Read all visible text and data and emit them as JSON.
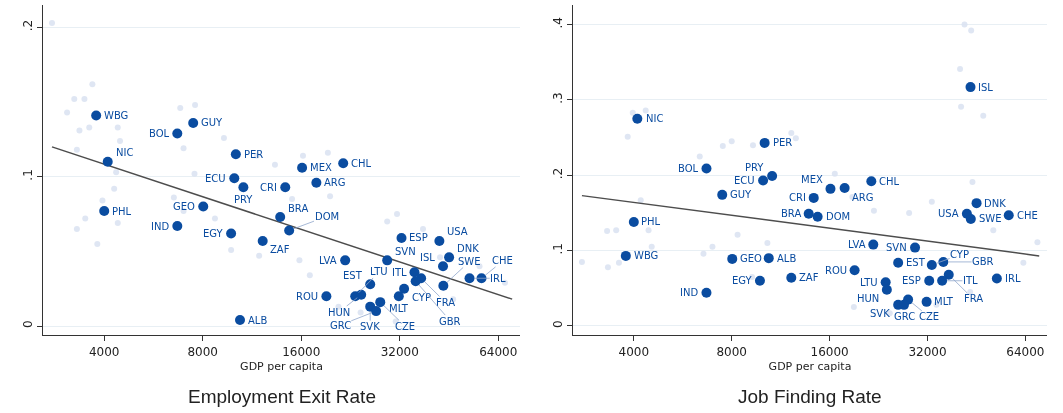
{
  "chart_data": [
    {
      "type": "scatter",
      "title": "Employment Exit Rate",
      "xlabel": "GDP per capita",
      "log": "x",
      "xlim": [
        2600,
        74600
      ],
      "xticks": [
        4000,
        8000,
        16000,
        32000,
        64000
      ],
      "ylim": [
        -0.006,
        0.215
      ],
      "yticks": [
        {
          "value": 0,
          "label": "0"
        },
        {
          "value": 0.1,
          "label": ".1"
        },
        {
          "value": 0.2,
          "label": ".2"
        }
      ],
      "grid": "y",
      "marker": "circle",
      "legend": false,
      "series": [
        {
          "color": "#d9e2f1",
          "x": [
            2770,
            3680,
            3240,
            3480,
            3080,
            3600,
            3360,
            4400,
            4470,
            3300,
            4350,
            4290,
            3950,
            3500,
            3300,
            3810,
            4400,
            6830,
            7580,
            9290,
            6990,
            7550,
            6530,
            6990,
            8720,
            9770,
            11900,
            11700,
            16200,
            19300,
            13300,
            15000,
            19600,
            29300,
            31400,
            37700,
            67100,
            46600,
            24300,
            31100,
            20800,
            17000,
            15800,
            56100,
            42500
          ],
          "values": [
            0.203,
            0.162,
            0.152,
            0.152,
            0.143,
            0.133,
            0.131,
            0.133,
            0.124,
            0.118,
            0.103,
            0.092,
            0.084,
            0.072,
            0.065,
            0.055,
            0.069,
            0.146,
            0.148,
            0.126,
            0.119,
            0.102,
            0.086,
            0.077,
            0.072,
            0.051,
            0.047,
            0.114,
            0.114,
            0.116,
            0.108,
            0.085,
            0.087,
            0.07,
            0.075,
            0.065,
            0.029,
            0.018,
            0.009,
            0.003,
            0.013,
            0.034,
            0.044,
            0.04,
            0.046
          ]
        },
        {
          "type": "line",
          "marker": "none",
          "color": "#4d4d4d",
          "x": [
            2770,
            70600
          ],
          "values": [
            0.12,
            0.018
          ]
        },
        {
          "name": "WBG",
          "color": "#0a4ca0",
          "x": [
            3780
          ],
          "values": [
            0.141
          ]
        },
        {
          "name": "NIC",
          "color": "#0a4ca0",
          "x": [
            4100
          ],
          "values": [
            0.11
          ]
        },
        {
          "name": "PHL",
          "color": "#0a4ca0",
          "x": [
            4000
          ],
          "values": [
            0.077
          ]
        },
        {
          "name": "BOL",
          "color": "#0a4ca0",
          "x": [
            6690
          ],
          "values": [
            0.129
          ]
        },
        {
          "name": "GUY",
          "color": "#0a4ca0",
          "x": [
            7480
          ],
          "values": [
            0.136
          ]
        },
        {
          "name": "IND",
          "color": "#0a4ca0",
          "x": [
            6690
          ],
          "values": [
            0.067
          ]
        },
        {
          "name": "GEO",
          "color": "#0a4ca0",
          "x": [
            8030
          ],
          "values": [
            0.08
          ]
        },
        {
          "name": "PER",
          "color": "#0a4ca0",
          "x": [
            10100
          ],
          "values": [
            0.115
          ]
        },
        {
          "name": "ECU",
          "color": "#0a4ca0",
          "x": [
            9990
          ],
          "values": [
            0.099
          ]
        },
        {
          "name": "PRY",
          "color": "#0a4ca0",
          "x": [
            10650
          ],
          "values": [
            0.093
          ]
        },
        {
          "name": "EGY",
          "color": "#0a4ca0",
          "x": [
            9770
          ],
          "values": [
            0.062
          ]
        },
        {
          "name": "ZAF",
          "color": "#0a4ca0",
          "x": [
            12200
          ],
          "values": [
            0.057
          ]
        },
        {
          "name": "ALB",
          "color": "#0a4ca0",
          "x": [
            10400
          ],
          "values": [
            0.004
          ]
        },
        {
          "name": "MEX",
          "color": "#0a4ca0",
          "x": [
            16100
          ],
          "values": [
            0.106
          ]
        },
        {
          "name": "CHL",
          "color": "#0a4ca0",
          "x": [
            21500
          ],
          "values": [
            0.109
          ]
        },
        {
          "name": "CRI",
          "color": "#0a4ca0",
          "x": [
            14300
          ],
          "values": [
            0.093
          ]
        },
        {
          "name": "ARG",
          "color": "#0a4ca0",
          "x": [
            17800
          ],
          "values": [
            0.096
          ]
        },
        {
          "name": "BRA",
          "color": "#0a4ca0",
          "x": [
            13800
          ],
          "values": [
            0.073
          ]
        },
        {
          "name": "DOM",
          "color": "#0a4ca0",
          "x": [
            14700
          ],
          "values": [
            0.064
          ]
        },
        {
          "name": "ESP",
          "color": "#0a4ca0",
          "x": [
            32400
          ],
          "values": [
            0.059
          ]
        },
        {
          "name": "USA",
          "color": "#0a4ca0",
          "x": [
            42300
          ],
          "values": [
            0.057
          ]
        },
        {
          "name": "LVA",
          "color": "#0a4ca0",
          "x": [
            21800
          ],
          "values": [
            0.044
          ]
        },
        {
          "name": "SVN",
          "color": "#0a4ca0",
          "x": [
            29300
          ],
          "values": [
            0.044
          ]
        },
        {
          "name": "DNK",
          "color": "#0a4ca0",
          "x": [
            45300
          ],
          "values": [
            0.046
          ]
        },
        {
          "name": "ISL",
          "color": "#0a4ca0",
          "x": [
            43400
          ],
          "values": [
            0.04
          ]
        },
        {
          "name": "ITL",
          "color": "#0a4ca0",
          "x": [
            35500
          ],
          "values": [
            0.036
          ]
        },
        {
          "name": "FRA",
          "color": "#0a4ca0",
          "x": [
            37200
          ],
          "values": [
            0.032
          ]
        },
        {
          "name": "GBR",
          "color": "#0a4ca0",
          "x": [
            35800
          ],
          "values": [
            0.03
          ]
        },
        {
          "name": "IRL",
          "color": "#0a4ca0",
          "x": [
            52300
          ],
          "values": [
            0.032
          ]
        },
        {
          "name": "CHE",
          "color": "#0a4ca0",
          "x": [
            56900
          ],
          "values": [
            0.032
          ]
        },
        {
          "name": "SWE",
          "color": "#0a4ca0",
          "x": [
            43500
          ],
          "values": [
            0.027
          ]
        },
        {
          "name": "CYP",
          "color": "#0a4ca0",
          "x": [
            33000
          ],
          "values": [
            0.025
          ]
        },
        {
          "name": "EST",
          "color": "#0a4ca0",
          "x": [
            26000
          ],
          "values": [
            0.028
          ]
        },
        {
          "name": "MLT",
          "color": "#0a4ca0",
          "x": [
            31800
          ],
          "values": [
            0.02
          ]
        },
        {
          "name": "ROU",
          "color": "#0a4ca0",
          "x": [
            19100
          ],
          "values": [
            0.02
          ]
        },
        {
          "name": "LTU",
          "color": "#0a4ca0",
          "x": [
            23400
          ],
          "values": [
            0.02
          ]
        },
        {
          "name": "HUN",
          "color": "#0a4ca0",
          "x": [
            24400
          ],
          "values": [
            0.021
          ]
        },
        {
          "name": "CZE",
          "color": "#0a4ca0",
          "x": [
            27900
          ],
          "values": [
            0.016
          ]
        },
        {
          "name": "SVK",
          "color": "#0a4ca0",
          "x": [
            26000
          ],
          "values": [
            0.013
          ]
        },
        {
          "name": "GRC",
          "color": "#0a4ca0",
          "x": [
            27100
          ],
          "values": [
            0.01
          ]
        }
      ]
    },
    {
      "type": "scatter",
      "title": "Job Finding Rate",
      "xlabel": "GDP per capita",
      "log": "x",
      "xlim": [
        2600,
        74600
      ],
      "xticks": [
        4000,
        8000,
        16000,
        32000,
        64000
      ],
      "ylim": [
        -0.012,
        0.426
      ],
      "yticks": [
        {
          "value": 0,
          "label": "0"
        },
        {
          "value": 0.1,
          "label": ".1"
        },
        {
          "value": 0.2,
          "label": ".2"
        },
        {
          "value": 0.3,
          "label": ".3"
        },
        {
          "value": 0.4,
          "label": ".4"
        }
      ],
      "grid": "y",
      "marker": "circle",
      "legend": false,
      "series": [
        {
          "color": "#d9e2f1",
          "x": [
            2770,
            3310,
            3530,
            3830,
            3970,
            4350,
            4200,
            4440,
            4540,
            3330,
            3600,
            6550,
            6980,
            6380,
            7510,
            8000,
            9300,
            8340,
            9240,
            10300,
            12200,
            12600,
            16600,
            44000,
            41600,
            43600,
            40300,
            40600,
            47500,
            28100,
            33000,
            51000,
            69700,
            63100,
            43300,
            19000,
            24500,
            34100,
            21900,
            18800
          ],
          "values": [
            0.085,
            0.126,
            0.127,
            0.251,
            0.283,
            0.286,
            0.167,
            0.127,
            0.105,
            0.078,
            0.084,
            0.096,
            0.105,
            0.225,
            0.239,
            0.245,
            0.24,
            0.121,
            0.065,
            0.11,
            0.256,
            0.249,
            0.202,
            0.191,
            0.4,
            0.392,
            0.341,
            0.291,
            0.279,
            0.15,
            0.165,
            0.127,
            0.111,
            0.084,
            0.045,
            0.025,
            0.017,
            0.028,
            0.153,
            0.171
          ]
        },
        {
          "type": "line",
          "marker": "none",
          "color": "#4d4d4d",
          "x": [
            2770,
            70600
          ],
          "values": [
            0.173,
            0.093
          ]
        },
        {
          "name": "NIC",
          "color": "#0a4ca0",
          "x": [
            4100
          ],
          "values": [
            0.275
          ]
        },
        {
          "name": "PER",
          "color": "#0a4ca0",
          "x": [
            10100
          ],
          "values": [
            0.243
          ]
        },
        {
          "name": "BOL",
          "color": "#0a4ca0",
          "x": [
            6690
          ],
          "values": [
            0.209
          ]
        },
        {
          "name": "PRY",
          "color": "#0a4ca0",
          "x": [
            10650
          ],
          "values": [
            0.199
          ]
        },
        {
          "name": "ECU",
          "color": "#0a4ca0",
          "x": [
            9990
          ],
          "values": [
            0.193
          ]
        },
        {
          "name": "GUY",
          "color": "#0a4ca0",
          "x": [
            7480
          ],
          "values": [
            0.174
          ]
        },
        {
          "name": "PHL",
          "color": "#0a4ca0",
          "x": [
            4000
          ],
          "values": [
            0.138
          ]
        },
        {
          "name": "WBG",
          "color": "#0a4ca0",
          "x": [
            3780
          ],
          "values": [
            0.093
          ]
        },
        {
          "name": "GEO",
          "color": "#0a4ca0",
          "x": [
            8030
          ],
          "values": [
            0.089
          ]
        },
        {
          "name": "ALB",
          "color": "#0a4ca0",
          "x": [
            10400
          ],
          "values": [
            0.09
          ]
        },
        {
          "name": "EGY",
          "color": "#0a4ca0",
          "x": [
            9770
          ],
          "values": [
            0.06
          ]
        },
        {
          "name": "ZAF",
          "color": "#0a4ca0",
          "x": [
            12200
          ],
          "values": [
            0.064
          ]
        },
        {
          "name": "IND",
          "color": "#0a4ca0",
          "x": [
            6690
          ],
          "values": [
            0.044
          ]
        },
        {
          "name": "ISL",
          "color": "#0a4ca0",
          "x": [
            43400
          ],
          "values": [
            0.317
          ]
        },
        {
          "name": "CHL",
          "color": "#0a4ca0",
          "x": [
            21500
          ],
          "values": [
            0.192
          ]
        },
        {
          "name": "MEX",
          "color": "#0a4ca0",
          "x": [
            16100
          ],
          "values": [
            0.182
          ]
        },
        {
          "name": "ARG",
          "color": "#0a4ca0",
          "x": [
            17800
          ],
          "values": [
            0.183
          ]
        },
        {
          "name": "CRI",
          "color": "#0a4ca0",
          "x": [
            14300
          ],
          "values": [
            0.17
          ]
        },
        {
          "name": "BRA",
          "color": "#0a4ca0",
          "x": [
            13800
          ],
          "values": [
            0.149
          ]
        },
        {
          "name": "DOM",
          "color": "#0a4ca0",
          "x": [
            14700
          ],
          "values": [
            0.145
          ]
        },
        {
          "name": "DNK",
          "color": "#0a4ca0",
          "x": [
            45300
          ],
          "values": [
            0.163
          ]
        },
        {
          "name": "USA",
          "color": "#0a4ca0",
          "x": [
            42300
          ],
          "values": [
            0.149
          ]
        },
        {
          "name": "SWE",
          "color": "#0a4ca0",
          "x": [
            43500
          ],
          "values": [
            0.142
          ]
        },
        {
          "name": "CHE",
          "color": "#0a4ca0",
          "x": [
            56900
          ],
          "values": [
            0.147
          ]
        },
        {
          "name": "LVA",
          "color": "#0a4ca0",
          "x": [
            21800
          ],
          "values": [
            0.108
          ]
        },
        {
          "name": "SVN",
          "color": "#0a4ca0",
          "x": [
            29300
          ],
          "values": [
            0.104
          ]
        },
        {
          "name": "EST",
          "color": "#0a4ca0",
          "x": [
            26000
          ],
          "values": [
            0.084
          ]
        },
        {
          "name": "CYP",
          "color": "#0a4ca0",
          "x": [
            33000
          ],
          "values": [
            0.081
          ]
        },
        {
          "name": "GBR",
          "color": "#0a4ca0",
          "x": [
            35800
          ],
          "values": [
            0.085
          ]
        },
        {
          "name": "FRA",
          "color": "#0a4ca0",
          "x": [
            37200
          ],
          "values": [
            0.068
          ]
        },
        {
          "name": "ESP",
          "color": "#0a4ca0",
          "x": [
            32400
          ],
          "values": [
            0.06
          ]
        },
        {
          "name": "ITL",
          "color": "#0a4ca0",
          "x": [
            35500
          ],
          "values": [
            0.06
          ]
        },
        {
          "name": "IRL",
          "color": "#0a4ca0",
          "x": [
            52300
          ],
          "values": [
            0.063
          ]
        },
        {
          "name": "ROU",
          "color": "#0a4ca0",
          "x": [
            19100
          ],
          "values": [
            0.074
          ]
        },
        {
          "name": "LTU",
          "color": "#0a4ca0",
          "x": [
            23800
          ],
          "values": [
            0.058
          ]
        },
        {
          "name": "HUN",
          "color": "#0a4ca0",
          "x": [
            24000
          ],
          "values": [
            0.048
          ]
        },
        {
          "name": "CZE",
          "color": "#0a4ca0",
          "x": [
            27900
          ],
          "values": [
            0.035
          ]
        },
        {
          "name": "MLT",
          "color": "#0a4ca0",
          "x": [
            31800
          ],
          "values": [
            0.032
          ]
        },
        {
          "name": "SVK",
          "color": "#0a4ca0",
          "x": [
            26000
          ],
          "values": [
            0.028
          ]
        },
        {
          "name": "GRC",
          "color": "#0a4ca0",
          "x": [
            27100
          ],
          "values": [
            0.028
          ]
        }
      ]
    }
  ]
}
